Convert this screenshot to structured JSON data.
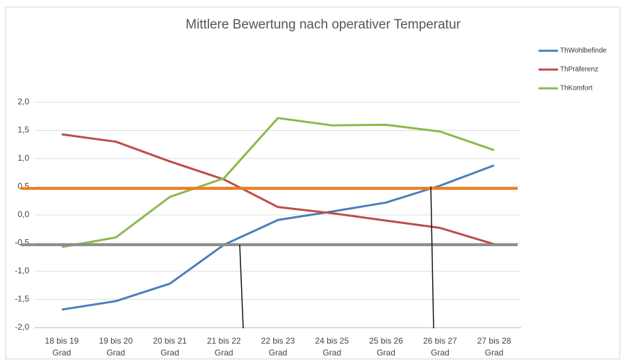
{
  "chart_data": {
    "type": "line",
    "title": "Mittlere Bewertung nach operativer Temperatur",
    "categories": [
      [
        "18 bis 19",
        "Grad"
      ],
      [
        "19 bis 20",
        "Grad"
      ],
      [
        "20 bis 21",
        "Grad"
      ],
      [
        "21 bis 22",
        "Grad"
      ],
      [
        "22 bis 23",
        "Grad"
      ],
      [
        "24 bis 25",
        "Grad"
      ],
      [
        "25 bis 26",
        "Grad"
      ],
      [
        "26 bis 27",
        "Grad"
      ],
      [
        "27 bis 28",
        "Grad"
      ]
    ],
    "series": [
      {
        "name": "ThWohlbefinde",
        "color": "#4a7ebb",
        "values": [
          -1.68,
          -1.53,
          -1.22,
          -0.53,
          -0.09,
          0.06,
          0.22,
          0.52,
          0.88
        ]
      },
      {
        "name": "ThPräferenz",
        "color": "#be4b48",
        "values": [
          1.43,
          1.3,
          0.95,
          0.63,
          0.14,
          0.03,
          -0.1,
          -0.23,
          -0.52
        ]
      },
      {
        "name": "ThKomfort",
        "color": "#8cb84a",
        "values": [
          -0.57,
          -0.4,
          0.32,
          0.65,
          1.72,
          1.59,
          1.6,
          1.48,
          1.15
        ]
      }
    ],
    "reference_lines": [
      {
        "value": 0.47,
        "color": "#f07d1a"
      },
      {
        "value": -0.53,
        "color": "#8c8c8c"
      }
    ],
    "ylim": [
      -2,
      2
    ],
    "yticks": [
      {
        "value": -2,
        "label": "-2,0"
      },
      {
        "value": -1.5,
        "label": "-1,5"
      },
      {
        "value": -1,
        "label": "-1,0"
      },
      {
        "value": -0.5,
        "label": "-0,5"
      },
      {
        "value": 0,
        "label": "0,0"
      },
      {
        "value": 0.5,
        "label": "0,5"
      },
      {
        "value": 1,
        "label": "1,0"
      },
      {
        "value": 1.5,
        "label": "1,5"
      },
      {
        "value": 2,
        "label": "2,0"
      }
    ],
    "grid": true,
    "legend": "top-right"
  }
}
